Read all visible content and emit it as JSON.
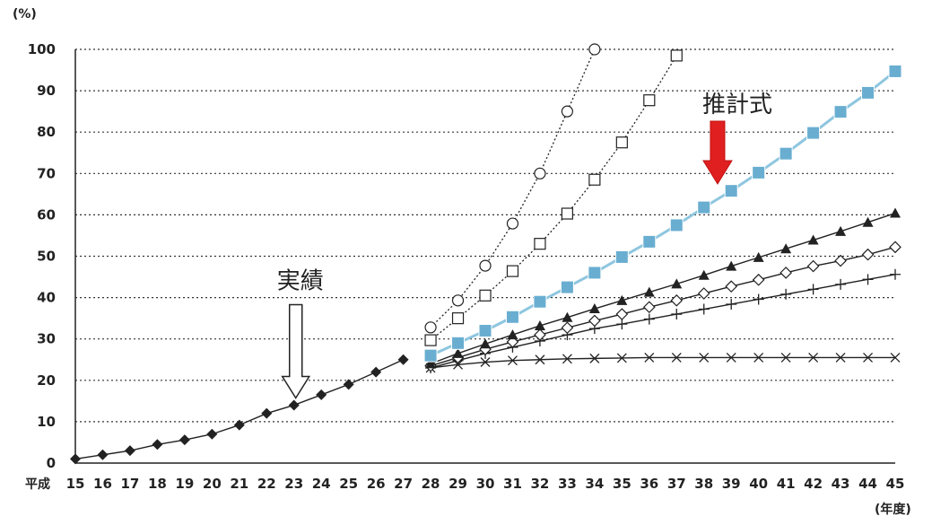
{
  "chart_data": {
    "type": "line",
    "y_unit_label": "(%)",
    "x_era_label": "平成",
    "x_unit_label": "(年度)",
    "ylim": [
      0,
      100
    ],
    "yticks": [
      0,
      10,
      20,
      30,
      40,
      50,
      60,
      70,
      80,
      90,
      100
    ],
    "xlim": [
      15,
      45
    ],
    "xticks": [
      "15",
      "16",
      "17",
      "18",
      "19",
      "20",
      "21",
      "22",
      "23",
      "24",
      "25",
      "26",
      "27",
      "28",
      "29",
      "30",
      "31",
      "32",
      "33",
      "34",
      "35",
      "36",
      "37",
      "38",
      "39",
      "40",
      "41",
      "42",
      "43",
      "44",
      "45"
    ],
    "grid": "horizontal-dotted",
    "colors": {
      "actual": "#222222",
      "estimate": "#8ec6df",
      "estimate_marker": "#69aed1",
      "scenario": "#222222",
      "arrow": "#e02020"
    },
    "annotations": [
      {
        "id": "actual",
        "text": "実績",
        "arrow": "hollow-down",
        "target_x": 23,
        "target_y": 14
      },
      {
        "id": "estimate",
        "text": "推計式",
        "arrow": "red-down",
        "target_x": 38.5,
        "target_y": 64
      }
    ],
    "series": [
      {
        "id": "actual",
        "marker": "diamond-filled",
        "line": "solid",
        "x": [
          15,
          16,
          17,
          18,
          19,
          20,
          21,
          22,
          23,
          24,
          25,
          26,
          27
        ],
        "y": [
          1,
          2,
          3,
          4.5,
          5.6,
          7,
          9.2,
          12,
          14,
          16.5,
          19,
          22,
          25
        ]
      },
      {
        "id": "estimate",
        "marker": "square-blue",
        "line": "solid-blue",
        "x": [
          28,
          29,
          30,
          31,
          32,
          33,
          34,
          35,
          36,
          37,
          38,
          39,
          40,
          41,
          42,
          43,
          44,
          45
        ],
        "y": [
          26,
          29,
          32,
          35.3,
          39,
          42.5,
          46,
          49.8,
          53.5,
          57.5,
          61.8,
          65.8,
          70.2,
          74.8,
          79.8,
          84.9,
          89.5,
          94.7
        ]
      },
      {
        "id": "circle",
        "marker": "circle-open",
        "line": "dotted",
        "x": [
          28,
          29,
          30,
          31,
          32,
          33,
          34
        ],
        "y": [
          32.8,
          39.3,
          47.7,
          57.9,
          70,
          85,
          100
        ]
      },
      {
        "id": "square-open",
        "marker": "square-open",
        "line": "dotted",
        "x": [
          28,
          29,
          30,
          31,
          32,
          33,
          34,
          35,
          36,
          37
        ],
        "y": [
          29.7,
          35,
          40.5,
          46.4,
          53,
          60.3,
          68.5,
          77.5,
          87.7,
          98.5
        ]
      },
      {
        "id": "triangle",
        "marker": "triangle-filled",
        "line": "solid",
        "x": [
          28,
          29,
          30,
          31,
          32,
          33,
          34,
          35,
          36,
          37,
          38,
          39,
          40,
          41,
          42,
          43,
          44,
          45
        ],
        "y": [
          24,
          26.5,
          28.8,
          31,
          33.2,
          35.2,
          37.3,
          39.3,
          41.3,
          43.3,
          45.4,
          47.6,
          49.7,
          51.8,
          53.9,
          56,
          58.2,
          60.4
        ]
      },
      {
        "id": "diamond-open",
        "marker": "diamond-open",
        "line": "solid",
        "x": [
          28,
          29,
          30,
          31,
          32,
          33,
          34,
          35,
          36,
          37,
          38,
          39,
          40,
          41,
          42,
          43,
          44,
          45
        ],
        "y": [
          23.5,
          25.5,
          27.5,
          29.3,
          31,
          32.7,
          34.4,
          36,
          37.7,
          39.3,
          41,
          42.7,
          44.3,
          46,
          47.6,
          48.9,
          50.4,
          52.2
        ]
      },
      {
        "id": "plus",
        "marker": "plus",
        "line": "solid",
        "x": [
          28,
          29,
          30,
          31,
          32,
          33,
          34,
          35,
          36,
          37,
          38,
          39,
          40,
          41,
          42,
          43,
          44,
          45
        ],
        "y": [
          23,
          24.8,
          26.5,
          28,
          29.5,
          31,
          32.5,
          33.6,
          34.8,
          36,
          37.2,
          38.4,
          39.6,
          40.8,
          42,
          43.2,
          44.4,
          45.6
        ]
      },
      {
        "id": "cross",
        "marker": "x",
        "line": "solid",
        "x": [
          28,
          29,
          30,
          31,
          32,
          33,
          34,
          35,
          36,
          37,
          38,
          39,
          40,
          41,
          42,
          43,
          44,
          45
        ],
        "y": [
          23,
          23.8,
          24.4,
          24.8,
          25,
          25.2,
          25.3,
          25.4,
          25.5,
          25.5,
          25.5,
          25.5,
          25.5,
          25.5,
          25.5,
          25.5,
          25.5,
          25.5
        ]
      }
    ]
  }
}
